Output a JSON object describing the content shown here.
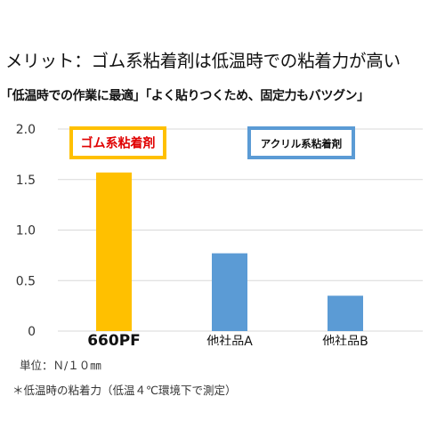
{
  "headline": "メリット：ゴム系粘着剤は低温時での粘着力が高い",
  "subheadline": "「低温時での作業に最適」「よく貼りつくため、固定力もバツグン」",
  "chart_data": {
    "type": "bar",
    "categories": [
      "660PF",
      "他社品A",
      "他社品B"
    ],
    "values": [
      1.57,
      0.77,
      0.35
    ],
    "bar_colors": [
      "#ffc000",
      "#5b9bd5",
      "#5b9bd5"
    ],
    "ylim": [
      0,
      2.0
    ],
    "yticks": [
      "0",
      "0.5",
      "1.0",
      "1.5",
      "2.0"
    ],
    "ytick_values": [
      0,
      0.5,
      1.0,
      1.5,
      2.0
    ],
    "grid": true,
    "legend": [
      {
        "label": "ゴム系粘着剤",
        "text_color": "#e00000",
        "border_color": "#ffc000"
      },
      {
        "label": "アクリル系粘着剤",
        "text_color": "#111111",
        "border_color": "#5b9bd5"
      }
    ]
  },
  "unit_note": "単位：Ｎ/１０㎜",
  "test_note": "＊低温時の粘着力（低温４℃環境下で測定）"
}
